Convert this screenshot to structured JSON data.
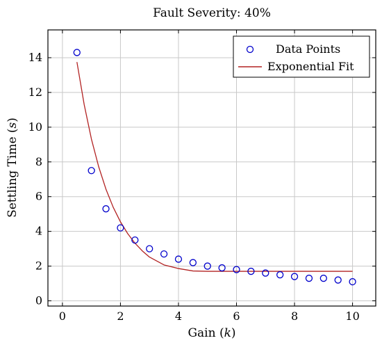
{
  "chart_data": {
    "type": "scatter",
    "title": "Fault Severity: 40%",
    "xlabel": "Gain (k)",
    "ylabel": "Settling Time (s)",
    "xlim": [
      -0.5,
      10.8
    ],
    "ylim": [
      -0.3,
      15.6
    ],
    "xticks": [
      0,
      2,
      4,
      6,
      8,
      10
    ],
    "yticks": [
      0,
      2,
      4,
      6,
      8,
      10,
      12,
      14
    ],
    "grid": true,
    "legend_position": "top-right",
    "series": [
      {
        "name": "Data Points",
        "kind": "scatter",
        "color": "#0000cc",
        "marker": "open-circle",
        "x": [
          0.5,
          1.0,
          1.5,
          2.0,
          2.5,
          3.0,
          3.5,
          4.0,
          4.5,
          5.0,
          5.5,
          6.0,
          6.5,
          7.0,
          7.5,
          8.0,
          8.5,
          9.0,
          9.5,
          10.0
        ],
        "y": [
          14.3,
          7.5,
          5.3,
          4.2,
          3.5,
          3.0,
          2.7,
          2.4,
          2.2,
          2.0,
          1.9,
          1.8,
          1.7,
          1.6,
          1.5,
          1.4,
          1.3,
          1.3,
          1.2,
          1.1
        ]
      },
      {
        "name": "Exponential Fit",
        "kind": "line",
        "color": "#b22222",
        "x": [
          0.5,
          0.75,
          1.0,
          1.25,
          1.5,
          1.75,
          2.0,
          2.25,
          2.5,
          2.75,
          3.0,
          3.5,
          4.0,
          4.5,
          5.0,
          5.5,
          6.0,
          7.0,
          8.0,
          9.0,
          10.0
        ],
        "y": [
          13.75,
          11.3,
          9.31,
          7.72,
          6.43,
          5.39,
          4.55,
          3.87,
          3.32,
          2.88,
          2.52,
          2.07,
          1.86,
          1.72,
          1.7,
          1.7,
          1.7,
          1.7,
          1.7,
          1.7,
          1.7
        ]
      }
    ]
  }
}
